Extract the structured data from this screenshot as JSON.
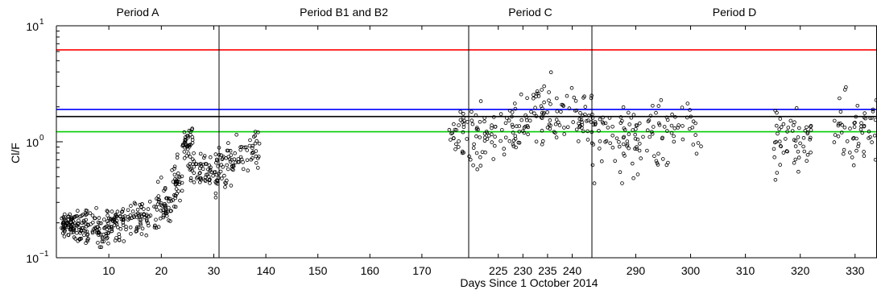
{
  "chart_data": {
    "type": "scatter",
    "xlabel": "Days Since 1 October 2014",
    "ylabel": "Cl/F",
    "yscale": "log",
    "ylim": [
      0.1,
      10
    ],
    "y_ticks": [
      {
        "value": 0.1,
        "base": "10",
        "exp": "−1"
      },
      {
        "value": 1,
        "base": "10",
        "exp": "0"
      },
      {
        "value": 10,
        "base": "10",
        "exp": "1"
      }
    ],
    "reference_lines": [
      {
        "value": 6.2,
        "color": "#ff0000"
      },
      {
        "value": 1.9,
        "color": "#0000ff"
      },
      {
        "value": 1.65,
        "color": "#000000"
      },
      {
        "value": 1.22,
        "color": "#00cc00"
      }
    ],
    "panels": [
      {
        "title": "Period A",
        "xlim": [
          0,
          31
        ],
        "x_ticks": [
          10,
          20,
          30
        ],
        "clusters": [
          {
            "x": [
              1,
              3
            ],
            "y": [
              0.13,
              0.28
            ],
            "n": 55
          },
          {
            "x": [
              3,
              6
            ],
            "y": [
              0.12,
              0.3
            ],
            "n": 60
          },
          {
            "x": [
              6,
              10
            ],
            "y": [
              0.11,
              0.3
            ],
            "n": 55
          },
          {
            "x": [
              10,
              14
            ],
            "y": [
              0.12,
              0.32
            ],
            "n": 55
          },
          {
            "x": [
              14,
              19
            ],
            "y": [
              0.13,
              0.4
            ],
            "n": 55
          },
          {
            "x": [
              19,
              22
            ],
            "y": [
              0.14,
              0.55
            ],
            "n": 45
          },
          {
            "x": [
              22,
              24
            ],
            "y": [
              0.2,
              0.9
            ],
            "n": 35
          },
          {
            "x": [
              24,
              26
            ],
            "y": [
              0.6,
              1.6
            ],
            "n": 35
          },
          {
            "x": [
              25,
              29
            ],
            "y": [
              0.35,
              1.0
            ],
            "n": 45
          },
          {
            "x": [
              29,
              31
            ],
            "y": [
              0.3,
              0.9
            ],
            "n": 30
          }
        ]
      },
      {
        "title": "Period B1 and B2",
        "xlim": [
          131,
          179
        ],
        "x_ticks": [
          140,
          150,
          160,
          170
        ],
        "clusters": [
          {
            "x": [
              131,
              134
            ],
            "y": [
              0.3,
              1.2
            ],
            "n": 35
          },
          {
            "x": [
              134,
              139
            ],
            "y": [
              0.5,
              1.3
            ],
            "n": 40
          },
          {
            "x": [
              175,
              179
            ],
            "y": [
              0.5,
              3.0
            ],
            "n": 28
          }
        ]
      },
      {
        "title": "Period C",
        "xlim": [
          219,
          244
        ],
        "x_ticks": [
          225,
          230,
          235,
          240
        ],
        "clusters": [
          {
            "x": [
              219,
              224
            ],
            "y": [
              0.35,
              3.0
            ],
            "n": 35
          },
          {
            "x": [
              224,
              232
            ],
            "y": [
              0.5,
              3.5
            ],
            "n": 50
          },
          {
            "x": [
              232,
              239
            ],
            "y": [
              0.7,
              4.5
            ],
            "n": 50
          },
          {
            "x": [
              239,
              244
            ],
            "y": [
              0.6,
              4.0
            ],
            "n": 35
          }
        ]
      },
      {
        "title": "Period D",
        "xlim": [
          282,
          334
        ],
        "x_ticks": [
          290,
          300,
          310,
          320,
          330
        ],
        "clusters": [
          {
            "x": [
              282,
              291
            ],
            "y": [
              0.35,
              3.0
            ],
            "n": 70
          },
          {
            "x": [
              291,
              302
            ],
            "y": [
              0.45,
              3.5
            ],
            "n": 55
          },
          {
            "x": [
              315,
              322
            ],
            "y": [
              0.4,
              3.2
            ],
            "n": 55
          },
          {
            "x": [
              326,
              334
            ],
            "y": [
              0.45,
              3.5
            ],
            "n": 55
          }
        ]
      }
    ]
  }
}
